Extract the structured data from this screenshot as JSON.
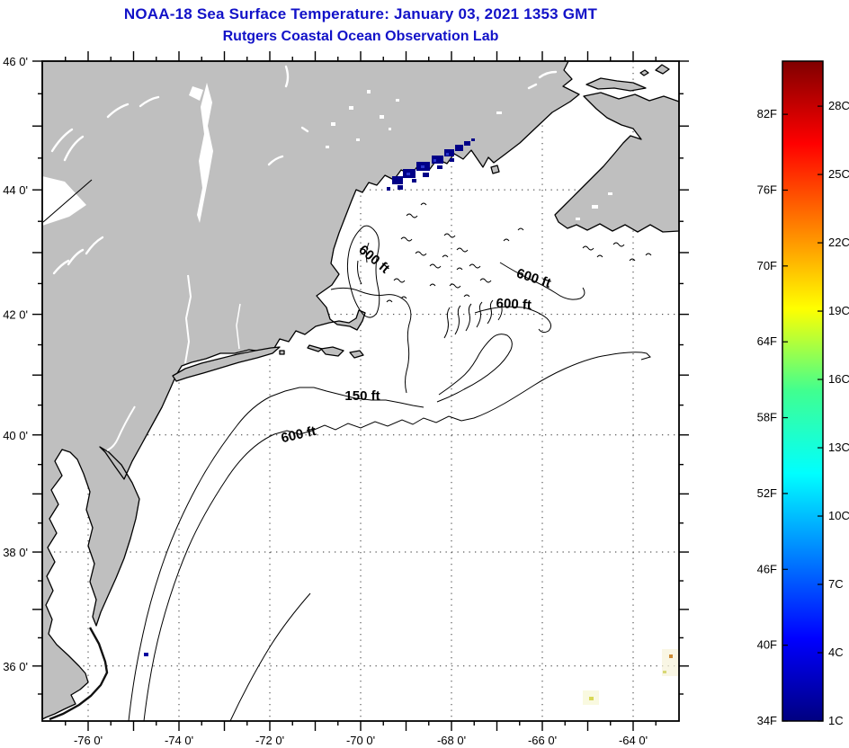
{
  "title": {
    "line1": "NOAA-18 Sea Surface Temperature:  January 03, 2021 1353 GMT",
    "line2": "Rutgers Coastal Ocean Observation Lab"
  },
  "map": {
    "lat_major": [
      {
        "label": "46 0'",
        "value": 46
      },
      {
        "label": "44 0'",
        "value": 44
      },
      {
        "label": "42 0'",
        "value": 42
      },
      {
        "label": "40 0'",
        "value": 40
      },
      {
        "label": "38 0'",
        "value": 38
      },
      {
        "label": "36 0'",
        "value": 36
      }
    ],
    "lon_major": [
      {
        "label": "-76 0'",
        "value": -76
      },
      {
        "label": "-74 0'",
        "value": -74
      },
      {
        "label": "-72 0'",
        "value": -72
      },
      {
        "label": "-70 0'",
        "value": -70
      },
      {
        "label": "-68 0'",
        "value": -68
      },
      {
        "label": "-66 0'",
        "value": -66
      },
      {
        "label": "-64 0'",
        "value": -64
      }
    ],
    "depth_labels": [
      {
        "text": "600 ft"
      },
      {
        "text": "600 ft"
      },
      {
        "text": "600 ft"
      },
      {
        "text": "600 ft"
      },
      {
        "text": "150 ft"
      }
    ]
  },
  "colorbar": {
    "fahrenheit": [
      {
        "label": "82F",
        "value": 82
      },
      {
        "label": "76F",
        "value": 76
      },
      {
        "label": "70F",
        "value": 70
      },
      {
        "label": "64F",
        "value": 64
      },
      {
        "label": "58F",
        "value": 58
      },
      {
        "label": "52F",
        "value": 52
      },
      {
        "label": "46F",
        "value": 46
      },
      {
        "label": "40F",
        "value": 40
      },
      {
        "label": "34F",
        "value": 34
      }
    ],
    "celsius": [
      {
        "label": "28C",
        "value": 28
      },
      {
        "label": "25C",
        "value": 25
      },
      {
        "label": "22C",
        "value": 22
      },
      {
        "label": "19C",
        "value": 19
      },
      {
        "label": "16C",
        "value": 16
      },
      {
        "label": "13C",
        "value": 13
      },
      {
        "label": "10C",
        "value": 10
      },
      {
        "label": "7C",
        "value": 7
      },
      {
        "label": "4C",
        "value": 4
      },
      {
        "label": "1C",
        "value": 1
      }
    ]
  },
  "colors": {
    "title_blue": "#1212c8",
    "land_gray": "#bfbfbf",
    "ocean_white": "#ffffff",
    "coastline_black": "#000000",
    "sst_cold_navy": "#000087",
    "jet_top_dark_red": "#800000",
    "jet_bottom_dark_blue": "#000080"
  }
}
